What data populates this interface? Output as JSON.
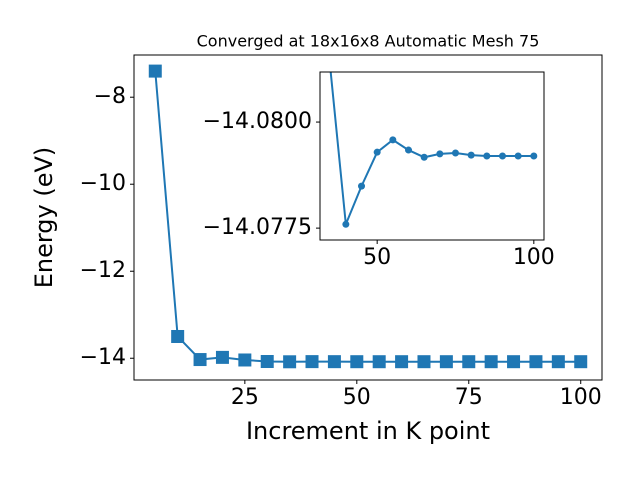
{
  "chart_data": [
    {
      "type": "line",
      "title": "Converged at 18x16x8 Automatic Mesh 75",
      "x_label": "Increment in K point",
      "y_label": "Energy (eV)",
      "x": [
        5,
        10,
        15,
        20,
        25,
        30,
        35,
        40,
        45,
        50,
        55,
        60,
        65,
        70,
        75,
        80,
        85,
        90,
        95,
        100
      ],
      "series": [
        {
          "color": "#1f77b4",
          "marker": "square",
          "values": [
            -7.4,
            -13.5,
            -14.03,
            -13.98,
            -14.04,
            -14.075,
            -14.0813,
            -14.0776,
            -14.0785,
            -14.0793,
            -14.0796,
            -14.0793,
            -14.0792,
            -14.0793,
            -14.0793,
            -14.0792,
            -14.0792,
            -14.0792,
            -14.0792,
            -14.0792
          ]
        }
      ],
      "xlim": [
        0.25,
        104.75
      ],
      "ylim": [
        -14.5,
        -7.03
      ],
      "xticks": [
        25,
        50,
        75,
        100
      ],
      "yticks": [
        {
          "value": -14,
          "label": "−14"
        },
        {
          "value": -12,
          "label": "−12"
        },
        {
          "value": -10,
          "label": "−10"
        },
        {
          "value": -8,
          "label": "−8"
        }
      ]
    },
    {
      "type": "line",
      "x": [
        35,
        40,
        45,
        50,
        55,
        60,
        65,
        70,
        75,
        80,
        85,
        90,
        95,
        100
      ],
      "series": [
        {
          "color": "#1f77b4",
          "marker": "circle",
          "values": [
            -14.0813,
            -14.07759,
            -14.07849,
            -14.07929,
            -14.07958,
            -14.07934,
            -14.07917,
            -14.07925,
            -14.07927,
            -14.07922,
            -14.0792,
            -14.0792,
            -14.0792,
            -14.0792
          ]
        }
      ],
      "xlim": [
        31.75,
        103.25
      ],
      "ylim": [
        -14.07722,
        -14.08118
      ],
      "xticks": [
        50,
        100
      ],
      "yticks": [
        {
          "value": -14.0775,
          "label": "−14.0775"
        },
        {
          "value": -14.08,
          "label": "−14.0800"
        }
      ]
    }
  ]
}
